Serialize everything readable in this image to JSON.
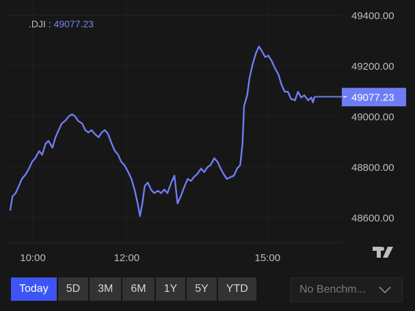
{
  "legend": {
    "symbol": ".DJI",
    "separator": " : ",
    "value": "49077.23"
  },
  "last_price_label": "49077.23",
  "ranges": [
    {
      "label": "Today",
      "active": true
    },
    {
      "label": "5D",
      "active": false
    },
    {
      "label": "3M",
      "active": false
    },
    {
      "label": "6M",
      "active": false
    },
    {
      "label": "1Y",
      "active": false
    },
    {
      "label": "5Y",
      "active": false
    },
    {
      "label": "YTD",
      "active": false
    }
  ],
  "benchmark": {
    "label": "No Benchm...",
    "icon": "chevron-down-icon"
  },
  "logo_icon": "tradingview-logo-icon",
  "colors": {
    "line": "#6f7df5",
    "price_label_bg": "#6f7df5",
    "active_range": "#3d55f5",
    "background": "#171717"
  },
  "chart_data": {
    "type": "line",
    "title": "",
    "xlabel": "",
    "ylabel": "",
    "ylim": [
      48500,
      49460
    ],
    "yticks": [
      "49400.00",
      "49200.00",
      "49000.00",
      "48800.00",
      "48600.00"
    ],
    "ytick_values": [
      49400,
      49200,
      49000,
      48800,
      48600
    ],
    "xticks": [
      "10:00",
      "12:00",
      "15:00"
    ],
    "xlim": [
      "09:18",
      "16:35"
    ],
    "grid": true,
    "last_value": 49077.23,
    "series": [
      {
        "x": [
          "09:31",
          "09:34",
          "09:38",
          "09:42",
          "09:46",
          "09:51",
          "09:55",
          "09:59",
          "10:03",
          "10:08",
          "10:12",
          "10:16",
          "10:20",
          "10:25",
          "10:29",
          "10:33",
          "10:37",
          "10:41",
          "10:46",
          "10:50",
          "10:54",
          "10:58",
          "11:03",
          "11:07",
          "11:11",
          "11:15",
          "11:19",
          "11:24",
          "11:28",
          "11:32",
          "11:36",
          "11:41",
          "11:45",
          "11:49",
          "11:53",
          "11:57",
          "12:02",
          "12:06",
          "12:10",
          "12:14",
          "12:17",
          "12:20",
          "12:23",
          "12:27",
          "12:31",
          "12:35",
          "12:40",
          "12:44",
          "12:48",
          "12:52",
          "12:57",
          "13:01",
          "13:05",
          "13:09",
          "13:14",
          "13:18",
          "13:22",
          "13:26",
          "13:30",
          "13:35",
          "13:39",
          "13:43",
          "13:47",
          "13:52",
          "13:56",
          "14:00",
          "14:04",
          "14:08",
          "14:13",
          "14:17",
          "14:21",
          "14:25",
          "14:28",
          "14:30",
          "14:34",
          "14:37",
          "14:41",
          "14:45",
          "14:49",
          "14:52",
          "14:57",
          "15:01",
          "15:05",
          "15:09",
          "15:14",
          "15:18",
          "15:22",
          "15:26",
          "15:30",
          "15:35",
          "15:39",
          "15:43",
          "15:47",
          "15:52",
          "15:56",
          "15:58",
          "16:00"
        ],
        "y": [
          48627,
          48683,
          48696,
          48724,
          48752,
          48771,
          48793,
          48820,
          48834,
          48862,
          48848,
          48890,
          48903,
          48876,
          48917,
          48945,
          48972,
          48981,
          49000,
          49008,
          49000,
          48981,
          48972,
          48945,
          48936,
          48945,
          48931,
          48917,
          48936,
          48945,
          48931,
          48890,
          48862,
          48848,
          48820,
          48807,
          48779,
          48752,
          48710,
          48655,
          48605,
          48655,
          48724,
          48738,
          48710,
          48696,
          48705,
          48696,
          48710,
          48696,
          48738,
          48765,
          48655,
          48683,
          48724,
          48752,
          48744,
          48760,
          48771,
          48793,
          48779,
          48798,
          48807,
          48834,
          48820,
          48793,
          48771,
          48752,
          48760,
          48765,
          48793,
          48807,
          48890,
          49041,
          49083,
          49152,
          49207,
          49248,
          49276,
          49262,
          49234,
          49240,
          49221,
          49193,
          49165,
          49124,
          49097,
          49097,
          49069,
          49063,
          49097,
          49074,
          49083,
          49063,
          49074,
          49055,
          49077.23
        ]
      }
    ]
  }
}
